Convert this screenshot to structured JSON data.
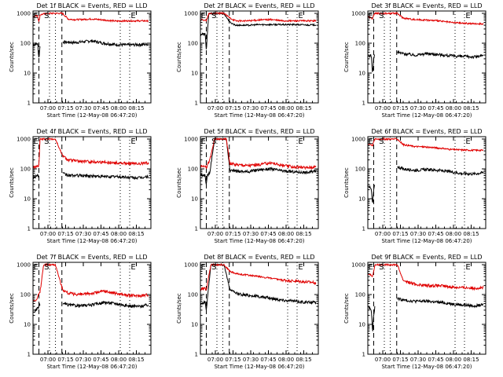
{
  "figure": {
    "colors": {
      "events": "#000000",
      "lld": "#e00000"
    },
    "x_tick_labels": [
      "07:00",
      "07:15",
      "07:30",
      "07:45",
      "08:00",
      "08:15"
    ],
    "xlabel": "Start Time (12-May-08 06:47:20)",
    "ylabel": "Counts/sec",
    "y_tick_labels": [
      "1",
      "10",
      "100",
      "1000"
    ]
  },
  "chart_data": [
    {
      "type": "line",
      "title": "Det 1f BLACK = Events, RED = LLD",
      "xlabel": "Start Time (12-May-08 06:47:20)",
      "ylabel": "Counts/sec",
      "yscale": "log",
      "ylim": [
        1,
        1200
      ],
      "xlim_minutes": [
        0,
        100
      ],
      "x_minutes": [
        0,
        4,
        5,
        6,
        9,
        11,
        14,
        19,
        25,
        30,
        35,
        40,
        50,
        60,
        70,
        80,
        90,
        98
      ],
      "series": [
        {
          "name": "Events",
          "color": "#000000",
          "values": [
            90,
            95,
            30,
            90,
            null,
            null,
            null,
            null,
            110,
            108,
            105,
            110,
            120,
            100,
            90,
            88,
            90,
            92
          ]
        },
        {
          "name": "LLD",
          "color": "#e00000",
          "values": [
            800,
            850,
            500,
            900,
            950,
            1000,
            1000,
            1000,
            1000,
            640,
            620,
            620,
            650,
            600,
            550,
            560,
            560,
            560
          ]
        }
      ],
      "markers": [
        "E",
        "S",
        "E"
      ]
    },
    {
      "type": "line",
      "title": "Det 2f BLACK = Events, RED = LLD",
      "xlabel": "Start Time (12-May-08 06:47:20)",
      "ylabel": "Counts/sec",
      "yscale": "log",
      "ylim": [
        1,
        1200
      ],
      "xlim_minutes": [
        0,
        100
      ],
      "x_minutes": [
        0,
        4,
        5,
        7,
        9,
        12,
        20,
        25,
        30,
        40,
        50,
        60,
        70,
        80,
        90,
        98
      ],
      "series": [
        {
          "name": "Events",
          "color": "#000000",
          "values": [
            200,
            200,
            60,
            900,
            1000,
            1000,
            1000,
            500,
            400,
            400,
            420,
            420,
            420,
            420,
            410,
            410
          ]
        },
        {
          "name": "LLD",
          "color": "#e00000",
          "values": [
            600,
            600,
            550,
            950,
            1000,
            1000,
            1000,
            700,
            560,
            560,
            600,
            620,
            560,
            560,
            560,
            560
          ]
        }
      ],
      "markers": [
        "E",
        "S",
        "E"
      ]
    },
    {
      "type": "line",
      "title": "Det 3f BLACK = Events, RED = LLD",
      "xlabel": "Start Time (12-May-08 06:47:20)",
      "ylabel": "Counts/sec",
      "yscale": "log",
      "ylim": [
        1,
        1200
      ],
      "xlim_minutes": [
        0,
        100
      ],
      "x_minutes": [
        0,
        3,
        4,
        5,
        6,
        9,
        14,
        19,
        25,
        30,
        40,
        50,
        60,
        70,
        80,
        90,
        98
      ],
      "series": [
        {
          "name": "Events",
          "color": "#000000",
          "values": [
            35,
            40,
            8,
            35,
            40,
            null,
            null,
            null,
            50,
            45,
            40,
            45,
            42,
            38,
            36,
            35,
            38
          ]
        },
        {
          "name": "LLD",
          "color": "#e00000",
          "values": [
            800,
            700,
            650,
            900,
            1000,
            1000,
            1000,
            1000,
            1000,
            700,
            620,
            600,
            560,
            500,
            470,
            450,
            450
          ]
        }
      ],
      "markers": [
        "E",
        "S",
        "E"
      ]
    },
    {
      "type": "line",
      "title": "Det 4f BLACK = Events, RED = LLD",
      "xlabel": "Start Time (12-May-08 06:47:20)",
      "ylabel": "Counts/sec",
      "yscale": "log",
      "ylim": [
        1,
        1200
      ],
      "xlim_minutes": [
        0,
        100
      ],
      "x_minutes": [
        0,
        3,
        5,
        6,
        9,
        14,
        19,
        25,
        30,
        40,
        50,
        60,
        70,
        80,
        90,
        98
      ],
      "series": [
        {
          "name": "Events",
          "color": "#000000",
          "values": [
            50,
            60,
            60,
            null,
            null,
            null,
            null,
            70,
            60,
            60,
            58,
            55,
            55,
            52,
            50,
            55
          ]
        },
        {
          "name": "LLD",
          "color": "#e00000",
          "values": [
            110,
            120,
            130,
            1000,
            1000,
            1000,
            1000,
            280,
            200,
            180,
            175,
            170,
            160,
            150,
            150,
            160
          ]
        }
      ],
      "markers": [
        "E",
        "S",
        "E"
      ]
    },
    {
      "type": "line",
      "title": "Det 5f BLACK = Events, RED = LLD",
      "xlabel": "Start Time (12-May-08 06:47:20)",
      "ylabel": "Counts/sec",
      "yscale": "log",
      "ylim": [
        1,
        1200
      ],
      "xlim_minutes": [
        0,
        100
      ],
      "x_minutes": [
        0,
        4,
        5,
        6,
        8,
        12,
        19,
        22,
        25,
        30,
        40,
        50,
        60,
        70,
        80,
        90,
        98
      ],
      "series": [
        {
          "name": "Events",
          "color": "#000000",
          "values": [
            60,
            60,
            30,
            60,
            80,
            1000,
            1000,
            1000,
            90,
            85,
            80,
            95,
            100,
            85,
            80,
            75,
            85
          ]
        },
        {
          "name": "LLD",
          "color": "#e00000",
          "values": [
            120,
            130,
            110,
            140,
            200,
            1000,
            1000,
            1000,
            150,
            140,
            130,
            140,
            160,
            130,
            115,
            110,
            120
          ]
        }
      ],
      "markers": [
        "E",
        "S",
        "E"
      ]
    },
    {
      "type": "line",
      "title": "Det 6f BLACK = Events, RED = LLD",
      "xlabel": "Start Time (12-May-08 06:47:20)",
      "ylabel": "Counts/sec",
      "yscale": "log",
      "ylim": [
        1,
        1200
      ],
      "xlim_minutes": [
        0,
        100
      ],
      "x_minutes": [
        0,
        3,
        4,
        5,
        6,
        9,
        14,
        19,
        25,
        30,
        40,
        50,
        60,
        70,
        80,
        90,
        98
      ],
      "series": [
        {
          "name": "Events",
          "color": "#000000",
          "values": [
            30,
            20,
            6,
            20,
            30,
            null,
            null,
            null,
            120,
            100,
            90,
            95,
            90,
            80,
            70,
            68,
            75
          ]
        },
        {
          "name": "LLD",
          "color": "#e00000",
          "values": [
            700,
            650,
            600,
            800,
            1000,
            1000,
            1000,
            1000,
            1000,
            650,
            560,
            540,
            500,
            450,
            430,
            420,
            420
          ]
        }
      ],
      "markers": [
        "E",
        "S",
        "E"
      ]
    },
    {
      "type": "line",
      "title": "Det 7f BLACK = Events, RED = LLD",
      "xlabel": "Start Time (12-May-08 06:47:20)",
      "ylabel": "Counts/sec",
      "yscale": "log",
      "ylim": [
        1,
        1200
      ],
      "xlim_minutes": [
        0,
        100
      ],
      "x_minutes": [
        0,
        3,
        4,
        5,
        6,
        9,
        14,
        19,
        25,
        30,
        40,
        50,
        60,
        70,
        80,
        90,
        98
      ],
      "series": [
        {
          "name": "Events",
          "color": "#000000",
          "values": [
            25,
            30,
            35,
            40,
            45,
            null,
            null,
            null,
            50,
            45,
            42,
            45,
            55,
            50,
            42,
            40,
            45
          ]
        },
        {
          "name": "LLD",
          "color": "#e00000",
          "values": [
            60,
            70,
            90,
            100,
            120,
            1000,
            1000,
            1000,
            150,
            110,
            100,
            110,
            130,
            110,
            95,
            90,
            100
          ]
        }
      ],
      "markers": [
        "E",
        "S",
        "E"
      ]
    },
    {
      "type": "line",
      "title": "Det 8f BLACK = Events, RED = LLD",
      "xlabel": "Start Time (12-May-08 06:47:20)",
      "ylabel": "Counts/sec",
      "yscale": "log",
      "ylim": [
        1,
        1200
      ],
      "xlim_minutes": [
        0,
        100
      ],
      "x_minutes": [
        0,
        4,
        5,
        7,
        9,
        12,
        20,
        25,
        30,
        40,
        50,
        60,
        70,
        80,
        90,
        98
      ],
      "series": [
        {
          "name": "Events",
          "color": "#000000",
          "values": [
            50,
            55,
            30,
            200,
            1000,
            1000,
            1000,
            150,
            110,
            95,
            85,
            75,
            65,
            60,
            55,
            55
          ]
        },
        {
          "name": "LLD",
          "color": "#e00000",
          "values": [
            150,
            160,
            140,
            400,
            1000,
            1000,
            1000,
            600,
            500,
            450,
            400,
            350,
            300,
            280,
            260,
            250
          ]
        }
      ],
      "markers": [
        "E",
        "S",
        "E"
      ]
    },
    {
      "type": "line",
      "title": "Det 9f BLACK = Events, RED = LLD",
      "xlabel": "Start Time (12-May-08 06:47:20)",
      "ylabel": "Counts/sec",
      "yscale": "log",
      "ylim": [
        1,
        1200
      ],
      "xlim_minutes": [
        0,
        100
      ],
      "x_minutes": [
        0,
        3,
        4,
        5,
        6,
        9,
        14,
        19,
        25,
        30,
        40,
        50,
        60,
        70,
        80,
        90,
        98
      ],
      "series": [
        {
          "name": "Events",
          "color": "#000000",
          "values": [
            40,
            30,
            5,
            20,
            40,
            null,
            null,
            null,
            75,
            65,
            60,
            60,
            55,
            50,
            45,
            42,
            45
          ]
        },
        {
          "name": "LLD",
          "color": "#e00000",
          "values": [
            500,
            450,
            400,
            600,
            1000,
            1000,
            1000,
            1000,
            1000,
            300,
            220,
            200,
            200,
            180,
            170,
            165,
            170
          ]
        }
      ],
      "markers": [
        "E",
        "S",
        "E"
      ]
    }
  ]
}
